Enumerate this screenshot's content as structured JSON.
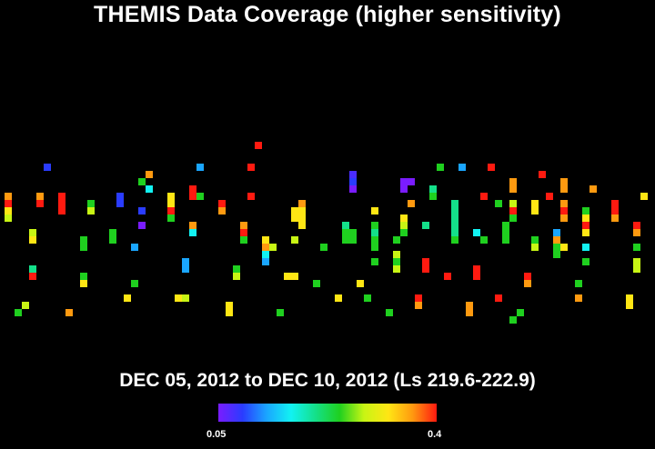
{
  "title": "THEMIS Data Coverage (higher sensitivity)",
  "subtitle": "DEC 05, 2012 to DEC 10, 2012 (Ls 219.6-222.9)",
  "colorbar": {
    "min_label": "0.05",
    "max_label": "0.4"
  },
  "chart_data": {
    "type": "heatmap",
    "title": "THEMIS Data Coverage (higher sensitivity)",
    "subtitle": "DEC 05, 2012 to DEC 10, 2012 (Ls 219.6-222.9)",
    "color_scale": {
      "min": 0.05,
      "max": 0.4,
      "colors": [
        "#7a1cff",
        "#2a3cff",
        "#1aa6ff",
        "#12f2f2",
        "#14e08a",
        "#1fd01f",
        "#c8f514",
        "#ffe614",
        "#ff9a10",
        "#ff1a10"
      ]
    },
    "segments": [
      {
        "x": 9,
        "y": [
          212,
          244
        ],
        "colors": [
          "#ff9a10",
          "#ff1a10",
          "#ffe614",
          "#c8f514"
        ]
      },
      {
        "x": 36,
        "y": [
          252,
          268
        ],
        "colors": [
          "#c8f514",
          "#ffe614"
        ]
      },
      {
        "x": 36,
        "y": [
          292,
          308
        ],
        "colors": [
          "#14e08a",
          "#ff1a10"
        ]
      },
      {
        "x": 44,
        "y": [
          212,
          228
        ],
        "colors": [
          "#ff9a10",
          "#ff1a10"
        ]
      },
      {
        "x": 52,
        "y": [
          180,
          188
        ],
        "colors": [
          "#2a3cff"
        ]
      },
      {
        "x": 68,
        "y": [
          212,
          236
        ],
        "colors": [
          "#ff1a10"
        ]
      },
      {
        "x": 92,
        "y": [
          260,
          276
        ],
        "colors": [
          "#1fd01f"
        ]
      },
      {
        "x": 92,
        "y": [
          300,
          316
        ],
        "colors": [
          "#1fd01f",
          "#ffe614"
        ]
      },
      {
        "x": 100,
        "y": [
          220,
          236
        ],
        "colors": [
          "#1fd01f",
          "#c8f514"
        ]
      },
      {
        "x": 124,
        "y": [
          252,
          268
        ],
        "colors": [
          "#1fd01f"
        ]
      },
      {
        "x": 132,
        "y": [
          212,
          228
        ],
        "colors": [
          "#2a3cff"
        ]
      },
      {
        "x": 148,
        "y": [
          268,
          276
        ],
        "colors": [
          "#1aa6ff"
        ]
      },
      {
        "x": 148,
        "y": [
          308,
          316
        ],
        "colors": [
          "#1fd01f"
        ]
      },
      {
        "x": 156,
        "y": [
          196,
          204
        ],
        "colors": [
          "#1fd01f"
        ]
      },
      {
        "x": 156,
        "y": [
          228,
          236
        ],
        "colors": [
          "#2a3cff"
        ]
      },
      {
        "x": 156,
        "y": [
          244,
          252
        ],
        "colors": [
          "#7a1cff"
        ]
      },
      {
        "x": 164,
        "y": [
          188,
          196
        ],
        "colors": [
          "#ff9a10"
        ]
      },
      {
        "x": 164,
        "y": [
          204,
          212
        ],
        "colors": [
          "#12f2f2"
        ]
      },
      {
        "x": 188,
        "y": [
          212,
          244
        ],
        "colors": [
          "#ffe614",
          "#ffe614",
          "#ff1a10",
          "#1fd01f"
        ]
      },
      {
        "x": 196,
        "y": [
          324,
          332
        ],
        "colors": [
          "#ffe614"
        ]
      },
      {
        "x": 204,
        "y": [
          324,
          332
        ],
        "colors": [
          "#c8f514"
        ]
      },
      {
        "x": 204,
        "y": [
          284,
          300
        ],
        "colors": [
          "#1aa6ff"
        ]
      },
      {
        "x": 212,
        "y": [
          204,
          220
        ],
        "colors": [
          "#ff1a10"
        ]
      },
      {
        "x": 212,
        "y": [
          244,
          260
        ],
        "colors": [
          "#ff9a10",
          "#12f2f2"
        ]
      },
      {
        "x": 220,
        "y": [
          180,
          188
        ],
        "colors": [
          "#1aa6ff"
        ]
      },
      {
        "x": 220,
        "y": [
          212,
          220
        ],
        "colors": [
          "#1fd01f"
        ]
      },
      {
        "x": 244,
        "y": [
          220,
          236
        ],
        "colors": [
          "#ff1a10",
          "#ff9a10"
        ]
      },
      {
        "x": 252,
        "y": [
          332,
          348
        ],
        "colors": [
          "#ffe614"
        ]
      },
      {
        "x": 260,
        "y": [
          292,
          308
        ],
        "colors": [
          "#1fd01f",
          "#c8f514"
        ]
      },
      {
        "x": 268,
        "y": [
          244,
          268
        ],
        "colors": [
          "#ff9a10",
          "#ff1a10",
          "#1fd01f"
        ]
      },
      {
        "x": 276,
        "y": [
          180,
          188
        ],
        "colors": [
          "#ff1a10"
        ]
      },
      {
        "x": 276,
        "y": [
          212,
          220
        ],
        "colors": [
          "#ff1a10"
        ]
      },
      {
        "x": 284,
        "y": [
          156,
          164
        ],
        "colors": [
          "#ff1a10"
        ]
      },
      {
        "x": 292,
        "y": [
          260,
          292
        ],
        "colors": [
          "#ffe614",
          "#ff9a10",
          "#12f2f2",
          "#1aa6ff"
        ]
      },
      {
        "x": 300,
        "y": [
          268,
          276
        ],
        "colors": [
          "#c8f514"
        ]
      },
      {
        "x": 308,
        "y": [
          340,
          348
        ],
        "colors": [
          "#1fd01f"
        ]
      },
      {
        "x": 316,
        "y": [
          300,
          308
        ],
        "colors": [
          "#ffe614"
        ]
      },
      {
        "x": 324,
        "y": [
          228,
          244
        ],
        "colors": [
          "#ffe614"
        ]
      },
      {
        "x": 324,
        "y": [
          260,
          268
        ],
        "colors": [
          "#c8f514"
        ]
      },
      {
        "x": 324,
        "y": [
          300,
          308
        ],
        "colors": [
          "#ffe614"
        ]
      },
      {
        "x": 332,
        "y": [
          220,
          252
        ],
        "colors": [
          "#ff9a10",
          "#ffe614",
          "#ffe614",
          "#ffe614"
        ]
      },
      {
        "x": 348,
        "y": [
          308,
          316
        ],
        "colors": [
          "#1fd01f"
        ]
      },
      {
        "x": 356,
        "y": [
          268,
          276
        ],
        "colors": [
          "#1fd01f"
        ]
      },
      {
        "x": 372,
        "y": [
          324,
          332
        ],
        "colors": [
          "#ffe614"
        ]
      },
      {
        "x": 380,
        "y": [
          244,
          268
        ],
        "colors": [
          "#14e08a",
          "#1fd01f",
          "#1fd01f"
        ]
      },
      {
        "x": 388,
        "y": [
          188,
          212
        ],
        "colors": [
          "#4a2cff",
          "#2a3cff",
          "#7a1cff"
        ]
      },
      {
        "x": 388,
        "y": [
          252,
          268
        ],
        "colors": [
          "#1fd01f"
        ]
      },
      {
        "x": 396,
        "y": [
          308,
          316
        ],
        "colors": [
          "#ffe614"
        ]
      },
      {
        "x": 404,
        "y": [
          324,
          332
        ],
        "colors": [
          "#1fd01f"
        ]
      },
      {
        "x": 412,
        "y": [
          228,
          236
        ],
        "colors": [
          "#ffe614"
        ]
      },
      {
        "x": 412,
        "y": [
          244,
          276
        ],
        "colors": [
          "#1fd01f",
          "#14e08a",
          "#1fd01f",
          "#1fd01f"
        ]
      },
      {
        "x": 412,
        "y": [
          284,
          292
        ],
        "colors": [
          "#1fd01f"
        ]
      },
      {
        "x": 428,
        "y": [
          340,
          348
        ],
        "colors": [
          "#1fd01f"
        ]
      },
      {
        "x": 436,
        "y": [
          260,
          268
        ],
        "colors": [
          "#1fd01f"
        ]
      },
      {
        "x": 436,
        "y": [
          276,
          300
        ],
        "colors": [
          "#c8f514",
          "#1fd01f",
          "#c8f514"
        ]
      },
      {
        "x": 444,
        "y": [
          196,
          212
        ],
        "colors": [
          "#7a1cff"
        ]
      },
      {
        "x": 452,
        "y": [
          196,
          204
        ],
        "colors": [
          "#7a1cff"
        ]
      },
      {
        "x": 444,
        "y": [
          236,
          260
        ],
        "colors": [
          "#ffe614",
          "#c8f514",
          "#1fd01f"
        ]
      },
      {
        "x": 452,
        "y": [
          220,
          228
        ],
        "colors": [
          "#ff9a10"
        ]
      },
      {
        "x": 460,
        "y": [
          324,
          340
        ],
        "colors": [
          "#ff1a10",
          "#ff9a10"
        ]
      },
      {
        "x": 468,
        "y": [
          244,
          252
        ],
        "colors": [
          "#14e08a"
        ]
      },
      {
        "x": 468,
        "y": [
          284,
          300
        ],
        "colors": [
          "#ff1a10"
        ]
      },
      {
        "x": 476,
        "y": [
          204,
          220
        ],
        "colors": [
          "#14e08a",
          "#1fd01f"
        ]
      },
      {
        "x": 484,
        "y": [
          180,
          188
        ],
        "colors": [
          "#1fd01f"
        ]
      },
      {
        "x": 492,
        "y": [
          300,
          308
        ],
        "colors": [
          "#ff1a10"
        ]
      },
      {
        "x": 500,
        "y": [
          220,
          268
        ],
        "colors": [
          "#14e08a",
          "#14e08a",
          "#14e08a",
          "#14e08a",
          "#14e08a",
          "#1fd01f"
        ]
      },
      {
        "x": 508,
        "y": [
          180,
          188
        ],
        "colors": [
          "#1aa6ff"
        ]
      },
      {
        "x": 516,
        "y": [
          332,
          348
        ],
        "colors": [
          "#ff9a10"
        ]
      },
      {
        "x": 524,
        "y": [
          252,
          260
        ],
        "colors": [
          "#12f2f2"
        ]
      },
      {
        "x": 524,
        "y": [
          292,
          308
        ],
        "colors": [
          "#ff1a10"
        ]
      },
      {
        "x": 532,
        "y": [
          212,
          220
        ],
        "colors": [
          "#ff1a10"
        ]
      },
      {
        "x": 532,
        "y": [
          260,
          268
        ],
        "colors": [
          "#1fd01f"
        ]
      },
      {
        "x": 540,
        "y": [
          180,
          188
        ],
        "colors": [
          "#ff1a10"
        ]
      },
      {
        "x": 548,
        "y": [
          220,
          228
        ],
        "colors": [
          "#1fd01f"
        ]
      },
      {
        "x": 548,
        "y": [
          324,
          332
        ],
        "colors": [
          "#ff1a10"
        ]
      },
      {
        "x": 556,
        "y": [
          244,
          268
        ],
        "colors": [
          "#1fd01f",
          "#1fd01f",
          "#1fd01f"
        ]
      },
      {
        "x": 564,
        "y": [
          196,
          212
        ],
        "colors": [
          "#ff9a10"
        ]
      },
      {
        "x": 564,
        "y": [
          220,
          244
        ],
        "colors": [
          "#c8f514",
          "#ff1a10",
          "#1fd01f"
        ]
      },
      {
        "x": 564,
        "y": [
          348,
          356
        ],
        "colors": [
          "#1fd01f"
        ]
      },
      {
        "x": 572,
        "y": [
          340,
          348
        ],
        "colors": [
          "#1fd01f"
        ]
      },
      {
        "x": 580,
        "y": [
          300,
          316
        ],
        "colors": [
          "#ff1a10",
          "#ff9a10"
        ]
      },
      {
        "x": 588,
        "y": [
          220,
          236
        ],
        "colors": [
          "#ffe614"
        ]
      },
      {
        "x": 588,
        "y": [
          260,
          276
        ],
        "colors": [
          "#1fd01f",
          "#c8f514"
        ]
      },
      {
        "x": 596,
        "y": [
          188,
          196
        ],
        "colors": [
          "#ff1a10"
        ]
      },
      {
        "x": 604,
        "y": [
          212,
          220
        ],
        "colors": [
          "#ff1a10"
        ]
      },
      {
        "x": 612,
        "y": [
          252,
          284
        ],
        "colors": [
          "#1aa6ff",
          "#ff9a10",
          "#1fd01f",
          "#1fd01f"
        ]
      },
      {
        "x": 620,
        "y": [
          196,
          212
        ],
        "colors": [
          "#ff9a10"
        ]
      },
      {
        "x": 620,
        "y": [
          220,
          244
        ],
        "colors": [
          "#ff9a10",
          "#ff1a10",
          "#ff9a10"
        ]
      },
      {
        "x": 620,
        "y": [
          268,
          276
        ],
        "colors": [
          "#ffe614"
        ]
      },
      {
        "x": 636,
        "y": [
          308,
          316
        ],
        "colors": [
          "#1fd01f"
        ]
      },
      {
        "x": 636,
        "y": [
          324,
          332
        ],
        "colors": [
          "#ff9a10"
        ]
      },
      {
        "x": 644,
        "y": [
          228,
          260
        ],
        "colors": [
          "#1fd01f",
          "#ffe614",
          "#ff1a10",
          "#ffe614"
        ]
      },
      {
        "x": 644,
        "y": [
          268,
          276
        ],
        "colors": [
          "#12f2f2"
        ]
      },
      {
        "x": 644,
        "y": [
          284,
          292
        ],
        "colors": [
          "#1fd01f"
        ]
      },
      {
        "x": 652,
        "y": [
          204,
          212
        ],
        "colors": [
          "#ff9a10"
        ]
      },
      {
        "x": 676,
        "y": [
          220,
          244
        ],
        "colors": [
          "#ff1a10",
          "#ff1a10",
          "#ff9a10"
        ]
      },
      {
        "x": 692,
        "y": [
          324,
          340
        ],
        "colors": [
          "#ffe614"
        ]
      },
      {
        "x": 700,
        "y": [
          244,
          260
        ],
        "colors": [
          "#ff1a10",
          "#ff9a10"
        ]
      },
      {
        "x": 700,
        "y": [
          268,
          276
        ],
        "colors": [
          "#1fd01f"
        ]
      },
      {
        "x": 700,
        "y": [
          284,
          300
        ],
        "colors": [
          "#c8f514"
        ]
      },
      {
        "x": 708,
        "y": [
          212,
          220
        ],
        "colors": [
          "#ffe614"
        ]
      },
      {
        "x": 20,
        "y": [
          340,
          348
        ],
        "colors": [
          "#1fd01f"
        ]
      },
      {
        "x": 28,
        "y": [
          332,
          340
        ],
        "colors": [
          "#c8f514"
        ]
      },
      {
        "x": 76,
        "y": [
          340,
          348
        ],
        "colors": [
          "#ff9a10"
        ]
      },
      {
        "x": 140,
        "y": [
          324,
          332
        ],
        "colors": [
          "#ffe614"
        ]
      }
    ]
  }
}
